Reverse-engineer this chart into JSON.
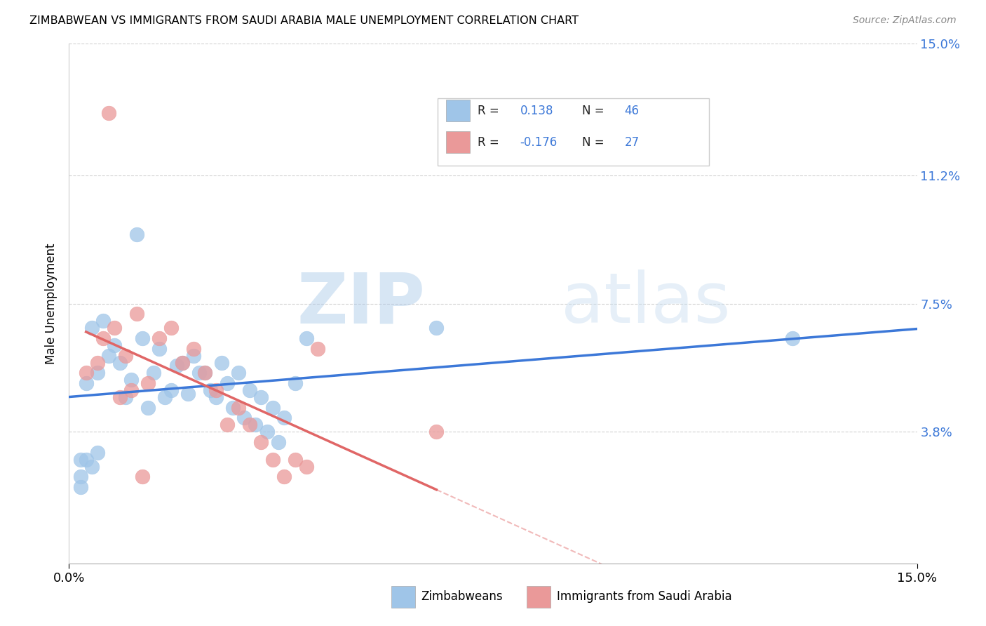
{
  "title": "ZIMBABWEAN VS IMMIGRANTS FROM SAUDI ARABIA MALE UNEMPLOYMENT CORRELATION CHART",
  "source": "Source: ZipAtlas.com",
  "ylabel": "Male Unemployment",
  "xlim": [
    0.0,
    0.15
  ],
  "ylim": [
    0.0,
    0.15
  ],
  "y_tick_labels": [
    "15.0%",
    "11.2%",
    "7.5%",
    "3.8%"
  ],
  "y_tick_values": [
    0.15,
    0.112,
    0.075,
    0.038
  ],
  "legend_label1": "Zimbabweans",
  "legend_label2": "Immigrants from Saudi Arabia",
  "r1": 0.138,
  "n1": 46,
  "r2": -0.176,
  "n2": 27,
  "blue_color": "#9fc5e8",
  "pink_color": "#ea9999",
  "blue_line_color": "#3c78d8",
  "pink_line_color": "#e06666",
  "blue_scatter": [
    [
      0.004,
      0.068
    ],
    [
      0.008,
      0.063
    ],
    [
      0.012,
      0.095
    ],
    [
      0.015,
      0.055
    ],
    [
      0.018,
      0.05
    ],
    [
      0.02,
      0.058
    ],
    [
      0.022,
      0.06
    ],
    [
      0.024,
      0.055
    ],
    [
      0.026,
      0.048
    ],
    [
      0.028,
      0.052
    ],
    [
      0.03,
      0.055
    ],
    [
      0.032,
      0.05
    ],
    [
      0.034,
      0.048
    ],
    [
      0.036,
      0.045
    ],
    [
      0.038,
      0.042
    ],
    [
      0.04,
      0.052
    ],
    [
      0.005,
      0.055
    ],
    [
      0.007,
      0.06
    ],
    [
      0.009,
      0.058
    ],
    [
      0.011,
      0.053
    ],
    [
      0.013,
      0.065
    ],
    [
      0.016,
      0.062
    ],
    [
      0.019,
      0.057
    ],
    [
      0.021,
      0.049
    ],
    [
      0.023,
      0.055
    ],
    [
      0.025,
      0.05
    ],
    [
      0.027,
      0.058
    ],
    [
      0.029,
      0.045
    ],
    [
      0.031,
      0.042
    ],
    [
      0.033,
      0.04
    ],
    [
      0.035,
      0.038
    ],
    [
      0.037,
      0.035
    ],
    [
      0.003,
      0.052
    ],
    [
      0.006,
      0.07
    ],
    [
      0.01,
      0.048
    ],
    [
      0.014,
      0.045
    ],
    [
      0.017,
      0.048
    ],
    [
      0.042,
      0.065
    ],
    [
      0.065,
      0.068
    ],
    [
      0.002,
      0.03
    ],
    [
      0.002,
      0.025
    ],
    [
      0.003,
      0.03
    ],
    [
      0.004,
      0.028
    ],
    [
      0.005,
      0.032
    ],
    [
      0.128,
      0.065
    ],
    [
      0.002,
      0.022
    ]
  ],
  "pink_scatter": [
    [
      0.007,
      0.13
    ],
    [
      0.012,
      0.072
    ],
    [
      0.016,
      0.065
    ],
    [
      0.018,
      0.068
    ],
    [
      0.02,
      0.058
    ],
    [
      0.022,
      0.062
    ],
    [
      0.024,
      0.055
    ],
    [
      0.026,
      0.05
    ],
    [
      0.028,
      0.04
    ],
    [
      0.03,
      0.045
    ],
    [
      0.032,
      0.04
    ],
    [
      0.034,
      0.035
    ],
    [
      0.036,
      0.03
    ],
    [
      0.038,
      0.025
    ],
    [
      0.04,
      0.03
    ],
    [
      0.042,
      0.028
    ],
    [
      0.005,
      0.058
    ],
    [
      0.008,
      0.068
    ],
    [
      0.01,
      0.06
    ],
    [
      0.014,
      0.052
    ],
    [
      0.044,
      0.062
    ],
    [
      0.065,
      0.038
    ],
    [
      0.003,
      0.055
    ],
    [
      0.006,
      0.065
    ],
    [
      0.009,
      0.048
    ],
    [
      0.011,
      0.05
    ],
    [
      0.013,
      0.025
    ]
  ],
  "watermark_zip": "ZIP",
  "watermark_atlas": "atlas",
  "background_color": "#ffffff",
  "grid_color": "#cccccc"
}
